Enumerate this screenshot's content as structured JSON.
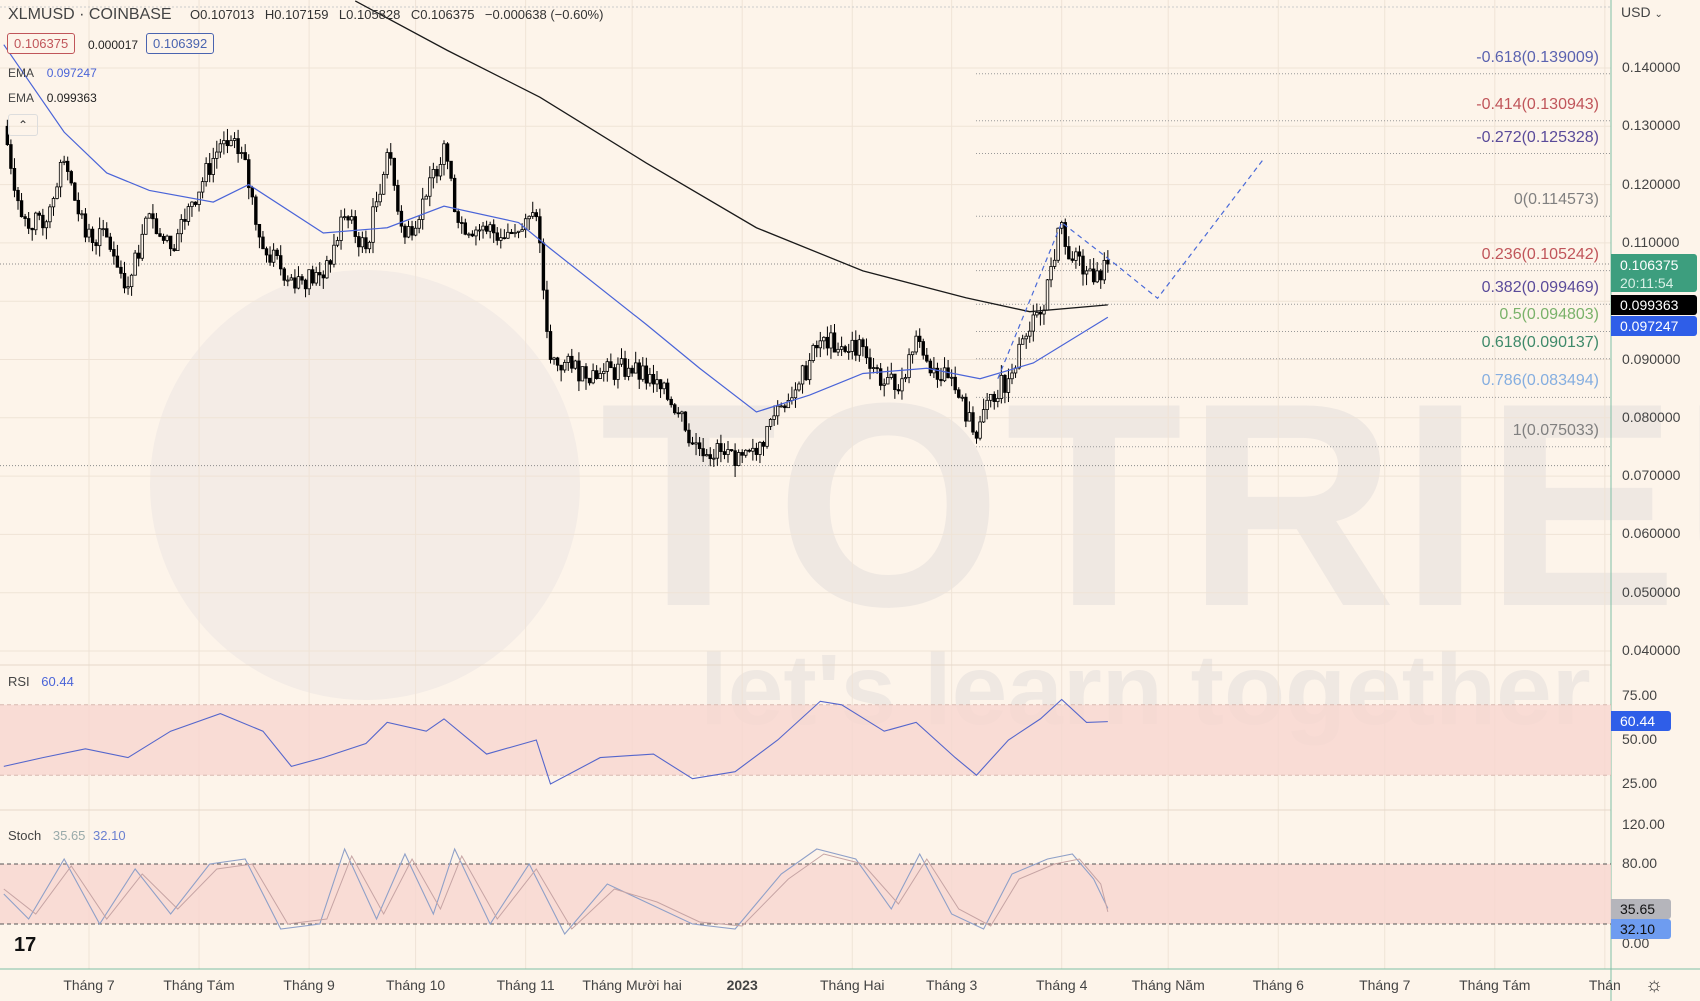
{
  "header": {
    "symbol": "XLMUSD · COINBASE",
    "open": "O0.107013",
    "high": "H0.107159",
    "low": "L0.105828",
    "close": "C0.106375",
    "change": "−0.000638 (−0.60%)",
    "bid": "0.106375",
    "spread": "0.000017",
    "ask": "0.106392",
    "ema1_label": "EMA",
    "ema1_value": "0.097247",
    "ema2_label": "EMA",
    "ema2_value": "0.099363",
    "collapse_icon": "chevron-up-icon"
  },
  "watermark": {
    "brand": "TOTRIEU",
    "tagline": "let's learn together"
  },
  "axis": {
    "currency": "USD",
    "price_ticks": [
      "0.140000",
      "0.130000",
      "0.120000",
      "0.110000",
      "0.090000",
      "0.080000",
      "0.070000",
      "0.060000",
      "0.050000",
      "0.040000"
    ],
    "rsi_ticks": [
      "75.00",
      "50.00",
      "25.00"
    ],
    "stoch_ticks": [
      "120.00",
      "80.00",
      "0.00"
    ],
    "last_price": "0.106375",
    "countdown": "20:11:54",
    "ema200_tag": "0.099363",
    "ema50_tag": "0.097247",
    "rsi_tag": "60.44",
    "stoch_k_tag": "35.65",
    "stoch_d_tag": "32.10",
    "settings_icon": "gear-icon"
  },
  "colors": {
    "background": "#fdf4ea",
    "up": "#000000",
    "ema50": "#4a64d8",
    "ema200": "#1a1a1a",
    "rsi": "#5566cc",
    "band": "#f8d6d0",
    "last_price": "#3d9e7e",
    "ema50_tag": "#2f5ee8"
  },
  "time_axis": [
    {
      "label": "Tháng 7",
      "date": "2022-07-01"
    },
    {
      "label": "Tháng Tám",
      "date": "2022-08-01"
    },
    {
      "label": "Tháng 9",
      "date": "2022-09-01"
    },
    {
      "label": "Tháng 10",
      "date": "2022-10-01"
    },
    {
      "label": "Tháng 11",
      "date": "2022-11-01"
    },
    {
      "label": "Tháng Mười hai",
      "date": "2022-12-01"
    },
    {
      "label": "2023",
      "date": "2023-01-01"
    },
    {
      "label": "Tháng Hai",
      "date": "2023-02-01"
    },
    {
      "label": "Tháng 3",
      "date": "2023-03-01"
    },
    {
      "label": "Tháng 4",
      "date": "2023-04-01"
    },
    {
      "label": "Tháng Năm",
      "date": "2023-05-01"
    },
    {
      "label": "Tháng 6",
      "date": "2023-06-01"
    },
    {
      "label": "Tháng 7",
      "date": "2023-07-01"
    },
    {
      "label": "Tháng Tám",
      "date": "2023-08-01"
    },
    {
      "label": "Thán",
      "date": "2023-09-01"
    }
  ],
  "chart_data": {
    "type": "candlestick",
    "title": "XLMUSD · COINBASE",
    "ylim": [
      0.035,
      0.147
    ],
    "price_closes": [
      [
        "2022-06-07",
        0.13
      ],
      [
        "2022-06-12",
        0.1145
      ],
      [
        "2022-06-18",
        0.1126
      ],
      [
        "2022-06-24",
        0.124
      ],
      [
        "2022-06-30",
        0.111
      ],
      [
        "2022-07-06",
        0.111
      ],
      [
        "2022-07-12",
        0.1025
      ],
      [
        "2022-07-18",
        0.115
      ],
      [
        "2022-07-24",
        0.109
      ],
      [
        "2022-07-30",
        0.117
      ],
      [
        "2022-08-07",
        0.127
      ],
      [
        "2022-08-13",
        0.1255
      ],
      [
        "2022-08-19",
        0.109
      ],
      [
        "2022-08-27",
        0.104
      ],
      [
        "2022-09-05",
        0.104
      ],
      [
        "2022-09-11",
        0.1145
      ],
      [
        "2022-09-17",
        0.109
      ],
      [
        "2022-09-23",
        0.1255
      ],
      [
        "2022-09-28",
        0.111
      ],
      [
        "2022-10-04",
        0.118
      ],
      [
        "2022-10-09",
        0.127
      ],
      [
        "2022-10-13",
        0.1135
      ],
      [
        "2022-10-21",
        0.112
      ],
      [
        "2022-10-30",
        0.112
      ],
      [
        "2022-11-04",
        0.1145
      ],
      [
        "2022-11-08",
        0.09
      ],
      [
        "2022-11-14",
        0.0885
      ],
      [
        "2022-11-22",
        0.0876
      ],
      [
        "2022-11-30",
        0.0885
      ],
      [
        "2022-12-07",
        0.0858
      ],
      [
        "2022-12-15",
        0.081
      ],
      [
        "2022-12-18",
        0.0755
      ],
      [
        "2022-12-27",
        0.0737
      ],
      [
        "2022-12-30",
        0.0718
      ],
      [
        "2023-01-05",
        0.0737
      ],
      [
        "2023-01-11",
        0.082
      ],
      [
        "2023-01-17",
        0.0858
      ],
      [
        "2023-01-23",
        0.0932
      ],
      [
        "2023-01-29",
        0.0922
      ],
      [
        "2023-02-04",
        0.0922
      ],
      [
        "2023-02-10",
        0.0858
      ],
      [
        "2023-02-15",
        0.0867
      ],
      [
        "2023-02-19",
        0.094
      ],
      [
        "2023-02-24",
        0.0885
      ],
      [
        "2023-03-02",
        0.0848
      ],
      [
        "2023-03-08",
        0.0765
      ],
      [
        "2023-03-11",
        0.083
      ],
      [
        "2023-03-17",
        0.0867
      ],
      [
        "2023-03-22",
        0.094
      ],
      [
        "2023-03-26",
        0.0978
      ],
      [
        "2023-04-01",
        0.1135
      ],
      [
        "2023-04-04",
        0.107
      ],
      [
        "2023-04-08",
        0.1052
      ],
      [
        "2023-04-11",
        0.1052
      ],
      [
        "2023-04-14",
        0.106375
      ]
    ],
    "ema50": [
      [
        "2022-06-07",
        0.144
      ],
      [
        "2022-06-24",
        0.129
      ],
      [
        "2022-07-06",
        0.122
      ],
      [
        "2022-07-18",
        0.119
      ],
      [
        "2022-08-05",
        0.117
      ],
      [
        "2022-08-15",
        0.12
      ],
      [
        "2022-09-05",
        0.1117
      ],
      [
        "2022-09-23",
        0.1126
      ],
      [
        "2022-10-09",
        0.1163
      ],
      [
        "2022-10-30",
        0.1135
      ],
      [
        "2022-11-08",
        0.109
      ],
      [
        "2022-12-05",
        0.096
      ],
      [
        "2022-12-20",
        0.0885
      ],
      [
        "2023-01-05",
        0.081
      ],
      [
        "2023-01-20",
        0.0839
      ],
      [
        "2023-02-04",
        0.0876
      ],
      [
        "2023-02-22",
        0.0885
      ],
      [
        "2023-03-09",
        0.0867
      ],
      [
        "2023-03-24",
        0.0894
      ],
      [
        "2023-04-14",
        0.097247
      ]
    ],
    "ema200": [
      [
        "2022-09-14",
        0.1515
      ],
      [
        "2022-10-10",
        0.143
      ],
      [
        "2022-11-05",
        0.135
      ],
      [
        "2022-12-05",
        0.1237
      ],
      [
        "2023-01-05",
        0.1126
      ],
      [
        "2023-02-04",
        0.1052
      ],
      [
        "2023-03-05",
        0.1006
      ],
      [
        "2023-03-23",
        0.0982
      ],
      [
        "2023-04-14",
        0.099363
      ]
    ],
    "fibonacci": [
      {
        "label": "-0.618(0.139009)",
        "price": 0.139009,
        "color": "#5b63b0"
      },
      {
        "label": "-0.414(0.130943)",
        "price": 0.130943,
        "color": "#c0555a"
      },
      {
        "label": "-0.272(0.125328)",
        "price": 0.125328,
        "color": "#5a4b9a"
      },
      {
        "label": "0(0.114573)",
        "price": 0.114573,
        "color": "#808080"
      },
      {
        "label": "0.236(0.105242)",
        "price": 0.105242,
        "color": "#c0555a"
      },
      {
        "label": "0.382(0.099469)",
        "price": 0.099469,
        "color": "#5a4b9a"
      },
      {
        "label": "0.5(0.094803)",
        "price": 0.094803,
        "color": "#7ab26a"
      },
      {
        "label": "0.618(0.090137)",
        "price": 0.090137,
        "color": "#3f8a6a"
      },
      {
        "label": "0.786(0.083494)",
        "price": 0.083494,
        "color": "#85aee0"
      },
      {
        "label": "1(0.075033)",
        "price": 0.075033,
        "color": "#808080"
      }
    ],
    "projection": [
      [
        "2023-03-14",
        0.0867
      ],
      [
        "2023-04-01",
        0.1135
      ],
      [
        "2023-04-16",
        0.1064
      ],
      [
        "2023-04-28",
        0.1005
      ],
      [
        "2023-05-28",
        0.1245
      ]
    ],
    "rsi": {
      "label": "RSI",
      "value": "60.44",
      "band": [
        30,
        70
      ],
      "ylim": [
        0,
        100
      ],
      "values": [
        [
          "2022-06-07",
          35
        ],
        [
          "2022-06-18",
          40
        ],
        [
          "2022-06-30",
          45
        ],
        [
          "2022-07-12",
          40
        ],
        [
          "2022-07-24",
          55
        ],
        [
          "2022-08-07",
          65
        ],
        [
          "2022-08-19",
          55
        ],
        [
          "2022-08-27",
          35
        ],
        [
          "2022-09-05",
          40
        ],
        [
          "2022-09-17",
          48
        ],
        [
          "2022-09-23",
          60
        ],
        [
          "2022-10-04",
          55
        ],
        [
          "2022-10-09",
          62
        ],
        [
          "2022-10-21",
          42
        ],
        [
          "2022-11-04",
          50
        ],
        [
          "2022-11-08",
          25
        ],
        [
          "2022-11-22",
          40
        ],
        [
          "2022-12-07",
          42
        ],
        [
          "2022-12-18",
          28
        ],
        [
          "2022-12-30",
          32
        ],
        [
          "2023-01-11",
          50
        ],
        [
          "2023-01-23",
          72
        ],
        [
          "2023-01-29",
          70
        ],
        [
          "2023-02-10",
          55
        ],
        [
          "2023-02-19",
          60
        ],
        [
          "2023-03-02",
          40
        ],
        [
          "2023-03-08",
          30
        ],
        [
          "2023-03-17",
          50
        ],
        [
          "2023-03-26",
          62
        ],
        [
          "2023-04-01",
          73
        ],
        [
          "2023-04-08",
          60
        ],
        [
          "2023-04-14",
          60.44
        ]
      ]
    },
    "stoch": {
      "label": "Stoch",
      "k_value": "35.65",
      "d_value": "32.10",
      "band": [
        20,
        80
      ],
      "ylim": [
        0,
        120
      ],
      "k": [
        [
          "2022-06-07",
          50
        ],
        [
          "2022-06-14",
          25
        ],
        [
          "2022-06-24",
          85
        ],
        [
          "2022-07-04",
          20
        ],
        [
          "2022-07-14",
          75
        ],
        [
          "2022-07-24",
          30
        ],
        [
          "2022-08-04",
          80
        ],
        [
          "2022-08-14",
          85
        ],
        [
          "2022-08-24",
          15
        ],
        [
          "2022-09-04",
          20
        ],
        [
          "2022-09-11",
          95
        ],
        [
          "2022-09-20",
          25
        ],
        [
          "2022-09-28",
          90
        ],
        [
          "2022-10-06",
          30
        ],
        [
          "2022-10-12",
          95
        ],
        [
          "2022-10-22",
          20
        ],
        [
          "2022-11-02",
          80
        ],
        [
          "2022-11-12",
          10
        ],
        [
          "2022-11-24",
          60
        ],
        [
          "2022-12-06",
          40
        ],
        [
          "2022-12-18",
          20
        ],
        [
          "2022-12-30",
          15
        ],
        [
          "2023-01-12",
          70
        ],
        [
          "2023-01-22",
          95
        ],
        [
          "2023-02-02",
          85
        ],
        [
          "2023-02-12",
          35
        ],
        [
          "2023-02-20",
          90
        ],
        [
          "2023-03-01",
          30
        ],
        [
          "2023-03-10",
          15
        ],
        [
          "2023-03-18",
          70
        ],
        [
          "2023-03-28",
          85
        ],
        [
          "2023-04-04",
          90
        ],
        [
          "2023-04-10",
          65
        ],
        [
          "2023-04-14",
          35.65
        ]
      ],
      "d": [
        [
          "2022-06-07",
          55
        ],
        [
          "2022-06-16",
          30
        ],
        [
          "2022-06-26",
          78
        ],
        [
          "2022-07-06",
          25
        ],
        [
          "2022-07-16",
          70
        ],
        [
          "2022-07-26",
          35
        ],
        [
          "2022-08-06",
          75
        ],
        [
          "2022-08-16",
          80
        ],
        [
          "2022-08-26",
          20
        ],
        [
          "2022-09-06",
          25
        ],
        [
          "2022-09-13",
          88
        ],
        [
          "2022-09-22",
          30
        ],
        [
          "2022-09-30",
          85
        ],
        [
          "2022-10-08",
          35
        ],
        [
          "2022-10-14",
          88
        ],
        [
          "2022-10-24",
          25
        ],
        [
          "2022-11-04",
          75
        ],
        [
          "2022-11-14",
          15
        ],
        [
          "2022-11-26",
          55
        ],
        [
          "2022-12-08",
          42
        ],
        [
          "2022-12-20",
          22
        ],
        [
          "2023-01-01",
          18
        ],
        [
          "2023-01-14",
          65
        ],
        [
          "2023-01-24",
          90
        ],
        [
          "2023-02-04",
          80
        ],
        [
          "2023-02-14",
          40
        ],
        [
          "2023-02-22",
          85
        ],
        [
          "2023-03-03",
          35
        ],
        [
          "2023-03-12",
          18
        ],
        [
          "2023-03-20",
          65
        ],
        [
          "2023-03-30",
          80
        ],
        [
          "2023-04-06",
          85
        ],
        [
          "2023-04-12",
          60
        ],
        [
          "2023-04-14",
          32.1
        ]
      ]
    }
  }
}
